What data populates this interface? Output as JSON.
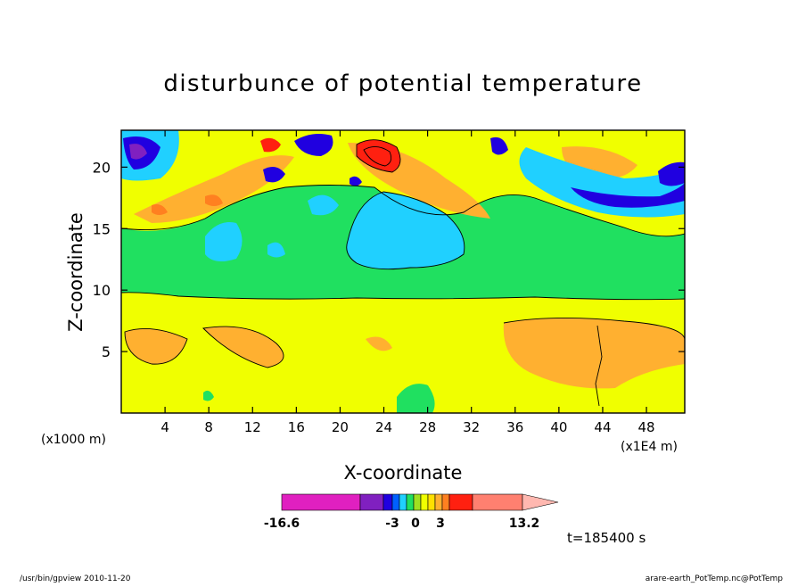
{
  "chart_data": {
    "type": "heatmap",
    "title": "disturbunce of potential temperature",
    "xlabel": "X-coordinate",
    "ylabel": "Z-coordinate",
    "y_unit": "(x1000 m)",
    "x_unit": "(x1E4 m)",
    "xlim": [
      0,
      51.5
    ],
    "ylim": [
      0,
      23
    ],
    "x_ticks": [
      4,
      8,
      12,
      16,
      20,
      24,
      28,
      32,
      36,
      40,
      44,
      48
    ],
    "y_ticks": [
      5,
      10,
      15,
      20
    ],
    "colorbar": {
      "tick_labels": [
        "-16.6",
        "-3",
        "0",
        "3",
        "13.2"
      ],
      "levels": [
        "-16.6",
        "-5",
        "-4",
        "-3",
        "-2",
        "-1",
        "0",
        "1",
        "2",
        "3",
        "4",
        "5",
        "13.2"
      ],
      "colors": [
        "#e020c0",
        "#8020c0",
        "#2000e0",
        "#0060ff",
        "#20d0ff",
        "#20e060",
        "#a0e020",
        "#f0ff00",
        "#ffe000",
        "#ffb030",
        "#ff8020",
        "#ff2010",
        "#ff8070",
        "#ffb8b0"
      ]
    },
    "timestamp": "t=185400 s"
  },
  "footer": {
    "left": "/usr/bin/gpview   2010-11-20",
    "right": "arare-earth_PotTemp.nc@PotTemp"
  }
}
